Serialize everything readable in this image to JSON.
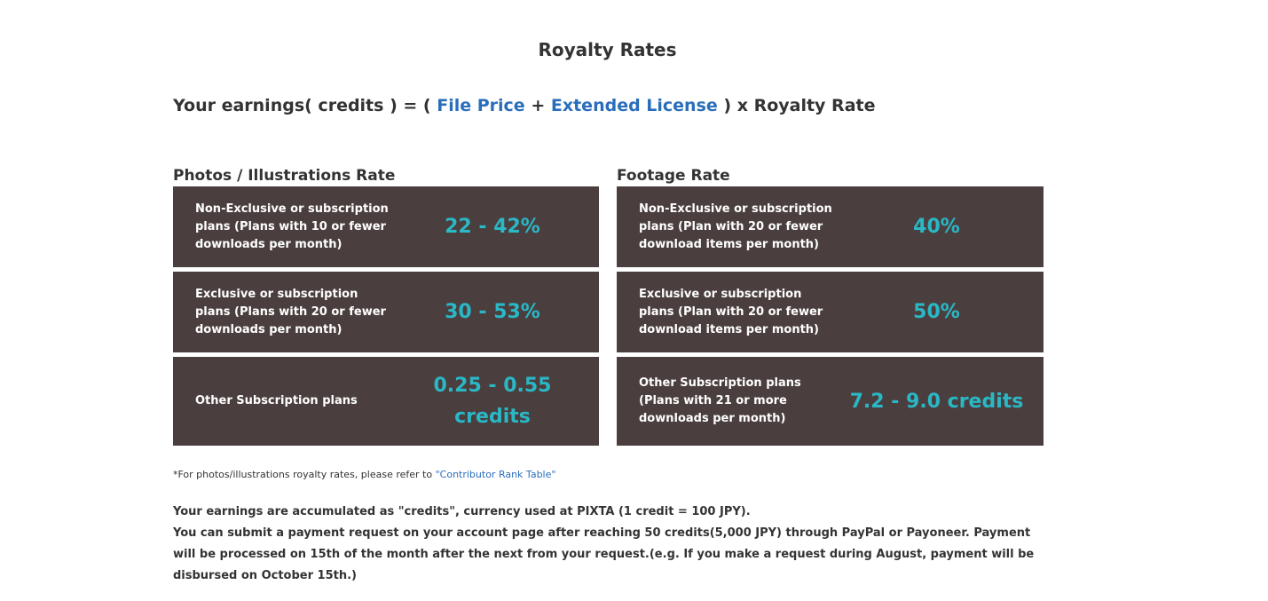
{
  "page": {
    "title": "Royalty Rates"
  },
  "formula": {
    "prefix": "Your earnings( credits ) = (",
    "file_price": "File Price",
    "plus": "+",
    "extended_license": "Extended License",
    "suffix": ") x Royalty Rate"
  },
  "photos": {
    "title": "Photos / Illustrations Rate",
    "rows": [
      {
        "desc": "Non-Exclusive or subscription plans (Plans with 10 or fewer downloads per month)",
        "value": "22 - 42%"
      },
      {
        "desc": "Exclusive or subscription plans (Plans with 20 or fewer downloads per month)",
        "value": "30 - 53%"
      },
      {
        "desc": "Other Subscription plans",
        "value": "0.25 - 0.55 credits"
      }
    ]
  },
  "footage": {
    "title": "Footage Rate",
    "rows": [
      {
        "desc": "Non-Exclusive or subscription plans (Plan with 20 or fewer download items per month)",
        "value": "40%"
      },
      {
        "desc": "Exclusive or subscription plans (Plan with 20 or fewer download items per month)",
        "value": "50%"
      },
      {
        "desc": "Other Subscription plans (Plans with 21 or more downloads per month)",
        "value": "7.2 - 9.0 credits"
      }
    ]
  },
  "footnote": {
    "text": "*For photos/illustrations royalty rates, please refer to",
    "link": "\"Contributor Rank Table\""
  },
  "earnings_note": {
    "line1": "Your earnings are accumulated as \"credits\", currency used at PIXTA (1 credit = 100 JPY).",
    "line2": "You can submit a payment request on your account page after reaching 50 credits(5,000 JPY) through PayPal or Payoneer. Payment will be processed on 15th of the month after the next from your request.(e.g. If you make a request during August, payment will be disbursed on October 15th.)"
  }
}
